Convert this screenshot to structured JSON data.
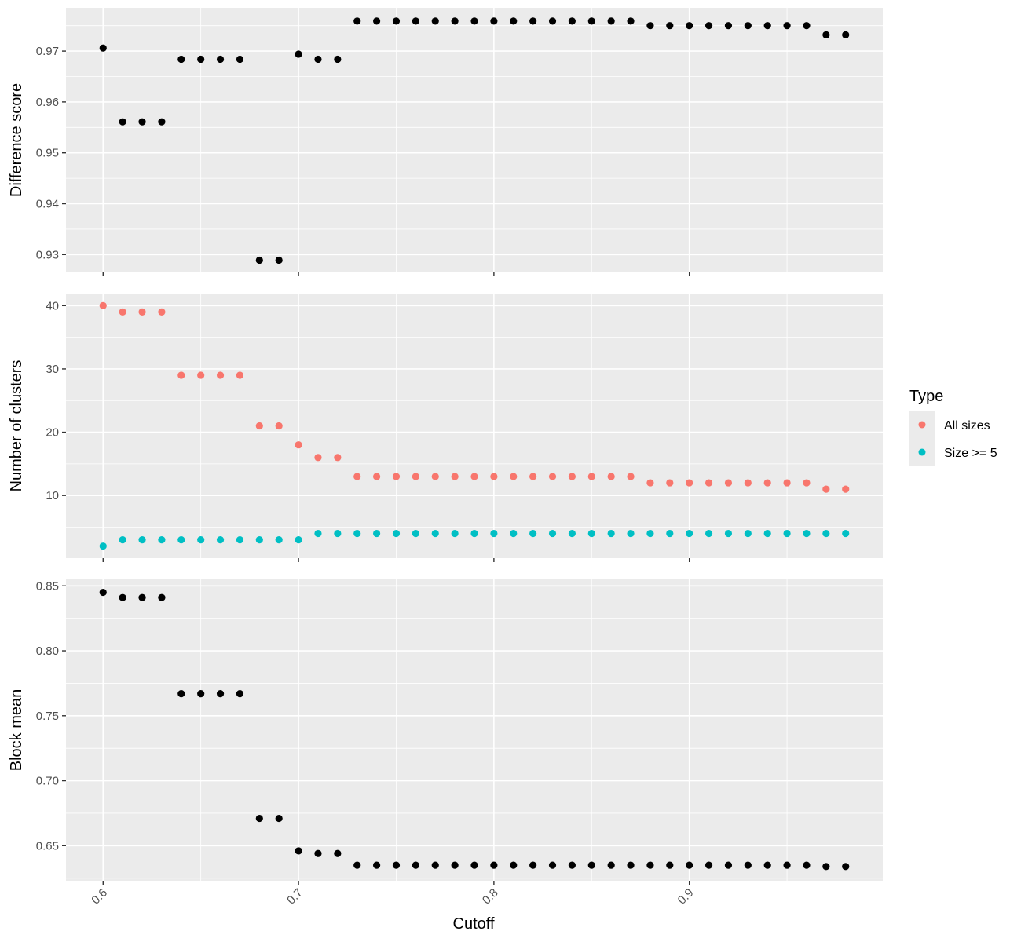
{
  "chart_data": {
    "type": "scatter",
    "xlabel": "Cutoff",
    "xlim": [
      0.581,
      0.999
    ],
    "x_ticks": [
      0.6,
      0.7,
      0.8,
      0.9
    ],
    "x_tick_labels": [
      "0.6",
      "0.7",
      "0.8",
      "0.9"
    ],
    "x": [
      0.6,
      0.61,
      0.62,
      0.63,
      0.64,
      0.65,
      0.66,
      0.67,
      0.68,
      0.69,
      0.7,
      0.71,
      0.72,
      0.73,
      0.74,
      0.75,
      0.76,
      0.77,
      0.78,
      0.79,
      0.8,
      0.81,
      0.82,
      0.83,
      0.84,
      0.85,
      0.86,
      0.87,
      0.88,
      0.89,
      0.9,
      0.91,
      0.92,
      0.93,
      0.94,
      0.95,
      0.96,
      0.97,
      0.98
    ],
    "grid": true,
    "legend": {
      "title": "Type",
      "position": "right",
      "entries": [
        {
          "label": "All sizes",
          "color": "#f8766d"
        },
        {
          "label": "Size >= 5",
          "color": "#00bfc4"
        }
      ]
    },
    "panels": [
      {
        "ylabel": "Difference score",
        "ylim": [
          0.9265,
          0.9785
        ],
        "y_ticks": [
          0.93,
          0.94,
          0.95,
          0.96,
          0.97
        ],
        "y_tick_labels": [
          "0.93",
          "0.94",
          "0.95",
          "0.96",
          "0.97"
        ],
        "series": [
          {
            "color": "#000000",
            "values": [
              0.9706,
              0.9561,
              0.9561,
              0.9561,
              0.9684,
              0.9684,
              0.9684,
              0.9684,
              0.9289,
              0.9289,
              0.9694,
              0.9684,
              0.9684,
              0.9759,
              0.9759,
              0.9759,
              0.9759,
              0.9759,
              0.9759,
              0.9759,
              0.9759,
              0.9759,
              0.9759,
              0.9759,
              0.9759,
              0.9759,
              0.9759,
              0.9759,
              0.975,
              0.975,
              0.975,
              0.975,
              0.975,
              0.975,
              0.975,
              0.975,
              0.975,
              0.9732,
              0.9732
            ]
          }
        ]
      },
      {
        "ylabel": "Number of clusters",
        "ylim": [
          0.1,
          41.9
        ],
        "y_ticks": [
          10,
          20,
          30,
          40
        ],
        "y_tick_labels": [
          "10",
          "20",
          "30",
          "40"
        ],
        "series": [
          {
            "name": "All sizes",
            "color": "#f8766d",
            "values": [
              40,
              39,
              39,
              39,
              29,
              29,
              29,
              29,
              21,
              21,
              18,
              16,
              16,
              13,
              13,
              13,
              13,
              13,
              13,
              13,
              13,
              13,
              13,
              13,
              13,
              13,
              13,
              13,
              12,
              12,
              12,
              12,
              12,
              12,
              12,
              12,
              12,
              11,
              11
            ]
          },
          {
            "name": "Size >= 5",
            "color": "#00bfc4",
            "values": [
              2,
              3,
              3,
              3,
              3,
              3,
              3,
              3,
              3,
              3,
              3,
              4,
              4,
              4,
              4,
              4,
              4,
              4,
              4,
              4,
              4,
              4,
              4,
              4,
              4,
              4,
              4,
              4,
              4,
              4,
              4,
              4,
              4,
              4,
              4,
              4,
              4,
              4,
              4
            ]
          }
        ]
      },
      {
        "ylabel": "Block mean",
        "ylim": [
          0.623,
          0.855
        ],
        "y_ticks": [
          0.65,
          0.7,
          0.75,
          0.8,
          0.85
        ],
        "y_tick_labels": [
          "0.65",
          "0.70",
          "0.75",
          "0.80",
          "0.85"
        ],
        "series": [
          {
            "color": "#000000",
            "values": [
              0.845,
              0.841,
              0.841,
              0.841,
              0.767,
              0.767,
              0.767,
              0.767,
              0.671,
              0.671,
              0.646,
              0.644,
              0.644,
              0.635,
              0.635,
              0.635,
              0.635,
              0.635,
              0.635,
              0.635,
              0.635,
              0.635,
              0.635,
              0.635,
              0.635,
              0.635,
              0.635,
              0.635,
              0.635,
              0.635,
              0.635,
              0.635,
              0.635,
              0.635,
              0.635,
              0.635,
              0.635,
              0.634,
              0.634
            ]
          }
        ]
      }
    ]
  }
}
